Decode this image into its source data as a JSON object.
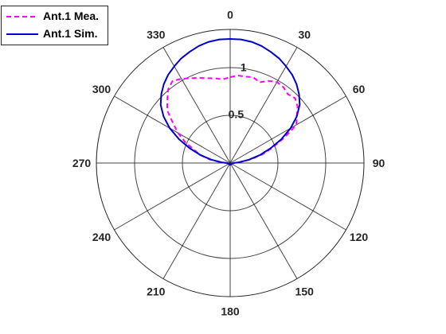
{
  "chart_data": {
    "type": "polar-line",
    "title": "",
    "theta_direction": "clockwise",
    "theta_zero": "top",
    "theta_ticks": [
      0,
      30,
      60,
      90,
      120,
      150,
      180,
      210,
      240,
      270,
      300,
      330
    ],
    "theta_tick_labels": [
      "0",
      "30",
      "60",
      "90",
      "120",
      "150",
      "180",
      "210",
      "240",
      "270",
      "300",
      "330"
    ],
    "r_ticks": [
      0.5,
      1
    ],
    "r_tick_labels": [
      "0.5",
      "1"
    ],
    "r_lim": [
      0,
      1.4
    ],
    "grid": true,
    "legend_position": "top-left",
    "series": [
      {
        "name": "Ant.1 Mea.",
        "color": "#ff00ff",
        "style": "dashed",
        "points": [
          [
            0,
            0.9
          ],
          [
            5,
            0.92
          ],
          [
            10,
            0.92
          ],
          [
            15,
            0.93
          ],
          [
            20,
            0.9
          ],
          [
            25,
            0.95
          ],
          [
            30,
            0.98
          ],
          [
            35,
            0.97
          ],
          [
            40,
            0.94
          ],
          [
            45,
            0.96
          ],
          [
            50,
            0.92
          ],
          [
            55,
            0.85
          ],
          [
            60,
            0.8
          ],
          [
            65,
            0.62
          ],
          [
            70,
            0.47
          ],
          [
            75,
            0.35
          ],
          [
            80,
            0.22
          ],
          [
            85,
            0.1
          ],
          [
            90,
            0.04
          ],
          [
            180,
            0.02
          ],
          [
            270,
            0.04
          ],
          [
            275,
            0.1
          ],
          [
            280,
            0.22
          ],
          [
            285,
            0.32
          ],
          [
            290,
            0.4
          ],
          [
            295,
            0.52
          ],
          [
            300,
            0.63
          ],
          [
            305,
            0.73
          ],
          [
            310,
            0.86
          ],
          [
            315,
            0.93
          ],
          [
            320,
            1.01
          ],
          [
            325,
            1.05
          ],
          [
            330,
            1.02
          ],
          [
            335,
            0.98
          ],
          [
            340,
            0.95
          ],
          [
            345,
            0.92
          ],
          [
            350,
            0.9
          ],
          [
            355,
            0.88
          ]
        ]
      },
      {
        "name": "Ant.1 Sim.",
        "color": "#0000cc",
        "style": "solid",
        "points": [
          [
            0,
            1.3
          ],
          [
            5,
            1.3
          ],
          [
            10,
            1.29
          ],
          [
            15,
            1.27
          ],
          [
            20,
            1.24
          ],
          [
            25,
            1.21
          ],
          [
            30,
            1.17
          ],
          [
            35,
            1.13
          ],
          [
            40,
            1.08
          ],
          [
            45,
            1.02
          ],
          [
            50,
            0.95
          ],
          [
            55,
            0.85
          ],
          [
            60,
            0.73
          ],
          [
            65,
            0.59
          ],
          [
            70,
            0.45
          ],
          [
            75,
            0.32
          ],
          [
            80,
            0.2
          ],
          [
            85,
            0.09
          ],
          [
            90,
            0.03
          ],
          [
            180,
            0.02
          ],
          [
            270,
            0.03
          ],
          [
            275,
            0.09
          ],
          [
            280,
            0.2
          ],
          [
            285,
            0.32
          ],
          [
            290,
            0.45
          ],
          [
            295,
            0.59
          ],
          [
            300,
            0.73
          ],
          [
            305,
            0.85
          ],
          [
            310,
            0.95
          ],
          [
            315,
            1.02
          ],
          [
            320,
            1.08
          ],
          [
            325,
            1.13
          ],
          [
            330,
            1.17
          ],
          [
            335,
            1.21
          ],
          [
            340,
            1.24
          ],
          [
            345,
            1.27
          ],
          [
            350,
            1.29
          ],
          [
            355,
            1.3
          ]
        ]
      }
    ]
  }
}
